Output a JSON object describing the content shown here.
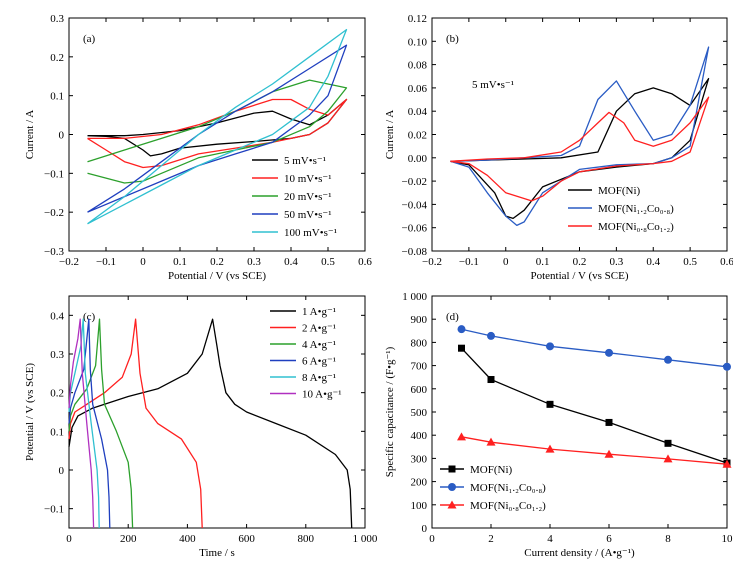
{
  "chart_data": [
    {
      "panel": "(a)",
      "type": "line",
      "xlabel": "Potential / V (vs SCE)",
      "ylabel": "Current / A",
      "xlim": [
        -0.2,
        0.6
      ],
      "ylim": [
        -0.3,
        0.3
      ],
      "xticks": [
        "-0.2",
        "-0.1",
        "0",
        "0.1",
        "0.2",
        "0.3",
        "0.4",
        "0.5",
        "0.6"
      ],
      "yticks": [
        "-0.3",
        "-0.2",
        "-0.1",
        "0",
        "0.1",
        "0.2",
        "0.3"
      ],
      "legend_position": "bottom-right",
      "series": [
        {
          "name": "5 mV•s⁻¹",
          "color": "#000000",
          "x": [
            -0.15,
            -0.05,
            0.0,
            0.1,
            0.2,
            0.3,
            0.35,
            0.4,
            0.45,
            0.5,
            0.55,
            0.5,
            0.45,
            0.4,
            0.3,
            0.2,
            0.1,
            0.05,
            0.02,
            0.0,
            -0.05,
            -0.1,
            -0.15
          ],
          "y": [
            -0.003,
            -0.003,
            0.0,
            0.01,
            0.03,
            0.055,
            0.06,
            0.04,
            0.025,
            0.05,
            0.09,
            0.03,
            0.0,
            -0.01,
            -0.018,
            -0.025,
            -0.035,
            -0.05,
            -0.055,
            -0.04,
            -0.01,
            -0.005,
            -0.003
          ]
        },
        {
          "name": "10 mV•s⁻¹",
          "color": "#ff2020",
          "x": [
            -0.15,
            -0.05,
            0.05,
            0.15,
            0.25,
            0.35,
            0.4,
            0.45,
            0.5,
            0.55,
            0.5,
            0.45,
            0.35,
            0.25,
            0.15,
            0.05,
            0.0,
            -0.05,
            -0.1,
            -0.15
          ],
          "y": [
            -0.01,
            -0.01,
            0.0,
            0.025,
            0.06,
            0.09,
            0.09,
            0.065,
            0.05,
            0.09,
            0.03,
            0.0,
            -0.02,
            -0.035,
            -0.05,
            -0.08,
            -0.085,
            -0.07,
            -0.04,
            -0.01
          ]
        },
        {
          "name": "20 mV•s⁻¹",
          "color": "#2ca02c",
          "x": [
            -0.15,
            -0.05,
            0.05,
            0.15,
            0.25,
            0.35,
            0.45,
            0.5,
            0.55,
            0.5,
            0.45,
            0.35,
            0.25,
            0.15,
            0.05,
            0.0,
            -0.05,
            -0.15
          ],
          "y": [
            -0.07,
            -0.04,
            -0.01,
            0.02,
            0.06,
            0.11,
            0.14,
            0.13,
            0.12,
            0.06,
            0.02,
            -0.02,
            -0.04,
            -0.06,
            -0.1,
            -0.12,
            -0.125,
            -0.1
          ]
        },
        {
          "name": "50 mV•s⁻¹",
          "color": "#1f3fbf",
          "x": [
            -0.15,
            -0.05,
            0.05,
            0.15,
            0.25,
            0.35,
            0.45,
            0.55,
            0.5,
            0.45,
            0.35,
            0.25,
            0.15,
            0.05,
            -0.05,
            -0.15
          ],
          "y": [
            -0.2,
            -0.14,
            -0.07,
            0.0,
            0.06,
            0.11,
            0.17,
            0.23,
            0.1,
            0.05,
            -0.02,
            -0.05,
            -0.08,
            -0.12,
            -0.16,
            -0.2
          ]
        },
        {
          "name": "100 mV•s⁻¹",
          "color": "#30c0d0",
          "x": [
            -0.15,
            -0.05,
            0.05,
            0.15,
            0.25,
            0.35,
            0.45,
            0.55,
            0.5,
            0.45,
            0.35,
            0.25,
            0.15,
            0.05,
            -0.05,
            -0.15
          ],
          "y": [
            -0.23,
            -0.16,
            -0.08,
            0.0,
            0.07,
            0.13,
            0.2,
            0.27,
            0.15,
            0.07,
            0.0,
            -0.04,
            -0.08,
            -0.13,
            -0.18,
            -0.23
          ]
        }
      ]
    },
    {
      "panel": "(b)",
      "type": "line",
      "xlabel": "Potential / V (vs SCE)",
      "ylabel": "Current / A",
      "xlim": [
        -0.2,
        0.6
      ],
      "ylim": [
        -0.08,
        0.12
      ],
      "xticks": [
        "-0.2",
        "-0.1",
        "0",
        "0.1",
        "0.2",
        "0.3",
        "0.4",
        "0.5",
        "0.6"
      ],
      "yticks": [
        "-0.08",
        "-0.06",
        "-0.04",
        "-0.02",
        "0.00",
        "0.02",
        "0.04",
        "0.06",
        "0.08",
        "0.10",
        "0.12"
      ],
      "annotation": "5 mV•s⁻¹",
      "legend_position": "bottom-right",
      "series": [
        {
          "name": "MOF(Ni)",
          "color": "#000000",
          "x": [
            -0.15,
            -0.05,
            0.05,
            0.15,
            0.25,
            0.3,
            0.35,
            0.4,
            0.45,
            0.5,
            0.55,
            0.5,
            0.45,
            0.4,
            0.3,
            0.2,
            0.1,
            0.05,
            0.02,
            0.0,
            -0.03,
            -0.1,
            -0.15
          ],
          "y": [
            -0.003,
            -0.002,
            -0.001,
            0.0,
            0.005,
            0.04,
            0.055,
            0.06,
            0.055,
            0.045,
            0.068,
            0.015,
            0.0,
            -0.005,
            -0.008,
            -0.012,
            -0.025,
            -0.045,
            -0.052,
            -0.05,
            -0.03,
            -0.006,
            -0.003
          ]
        },
        {
          "name": "MOF(Ni₁.₂Co₀.₈)",
          "color": "#2a5cc4",
          "x": [
            -0.15,
            -0.05,
            0.05,
            0.15,
            0.2,
            0.25,
            0.3,
            0.35,
            0.4,
            0.45,
            0.5,
            0.55,
            0.5,
            0.45,
            0.4,
            0.3,
            0.2,
            0.1,
            0.05,
            0.03,
            0.0,
            -0.05,
            -0.1,
            -0.15
          ],
          "y": [
            -0.003,
            -0.002,
            0.0,
            0.002,
            0.01,
            0.05,
            0.066,
            0.04,
            0.015,
            0.02,
            0.045,
            0.095,
            0.01,
            0.0,
            -0.005,
            -0.006,
            -0.01,
            -0.03,
            -0.055,
            -0.058,
            -0.05,
            -0.03,
            -0.008,
            -0.003
          ]
        },
        {
          "name": "MOF(Ni₀.₈Co₁.₂)",
          "color": "#ff2020",
          "x": [
            -0.15,
            -0.05,
            0.05,
            0.15,
            0.2,
            0.25,
            0.28,
            0.32,
            0.35,
            0.4,
            0.45,
            0.5,
            0.55,
            0.5,
            0.45,
            0.4,
            0.3,
            0.2,
            0.15,
            0.1,
            0.07,
            0.0,
            -0.05,
            -0.1,
            -0.15
          ],
          "y": [
            -0.003,
            -0.001,
            0.0,
            0.005,
            0.015,
            0.03,
            0.039,
            0.03,
            0.015,
            0.01,
            0.015,
            0.03,
            0.052,
            0.005,
            -0.003,
            -0.005,
            -0.007,
            -0.012,
            -0.02,
            -0.033,
            -0.037,
            -0.03,
            -0.015,
            -0.005,
            -0.003
          ]
        }
      ]
    },
    {
      "panel": "(c)",
      "type": "line",
      "xlabel": "Time / s",
      "ylabel": "Potential / V (vs SCE)",
      "xlim": [
        0,
        1000
      ],
      "ylim": [
        -0.15,
        0.45
      ],
      "xticks": [
        "0",
        "200",
        "400",
        "600",
        "800",
        "1 000"
      ],
      "yticks": [
        "-0.1",
        "0",
        "0.1",
        "0.2",
        "0.3",
        "0.4"
      ],
      "legend_position": "top-right",
      "series": [
        {
          "name": "1 A•g⁻¹",
          "color": "#000000",
          "x": [
            0,
            10,
            30,
            80,
            200,
            300,
            400,
            450,
            485,
            500,
            510,
            530,
            560,
            600,
            700,
            800,
            900,
            940,
            950,
            955
          ],
          "y": [
            0.06,
            0.11,
            0.14,
            0.16,
            0.19,
            0.21,
            0.25,
            0.3,
            0.39,
            0.32,
            0.27,
            0.2,
            0.17,
            0.15,
            0.12,
            0.09,
            0.04,
            0.0,
            -0.05,
            -0.15
          ]
        },
        {
          "name": "2 A•g⁻¹",
          "color": "#ff2020",
          "x": [
            0,
            5,
            20,
            60,
            120,
            180,
            210,
            225,
            240,
            260,
            300,
            380,
            430,
            445,
            450
          ],
          "y": [
            0.08,
            0.12,
            0.15,
            0.17,
            0.2,
            0.24,
            0.3,
            0.39,
            0.25,
            0.16,
            0.12,
            0.08,
            0.02,
            -0.05,
            -0.15
          ]
        },
        {
          "name": "4 A•g⁻¹",
          "color": "#2ca02c",
          "x": [
            0,
            5,
            20,
            60,
            90,
            103,
            110,
            120,
            160,
            200,
            210,
            215
          ],
          "y": [
            0.1,
            0.14,
            0.17,
            0.21,
            0.27,
            0.39,
            0.26,
            0.17,
            0.1,
            0.02,
            -0.05,
            -0.15
          ]
        },
        {
          "name": "6 A•g⁻¹",
          "color": "#1f3fbf",
          "x": [
            0,
            5,
            20,
            50,
            67,
            72,
            80,
            110,
            130,
            135,
            138
          ],
          "y": [
            0.12,
            0.16,
            0.2,
            0.26,
            0.39,
            0.26,
            0.17,
            0.08,
            0.0,
            -0.07,
            -0.15
          ]
        },
        {
          "name": "8 A•g⁻¹",
          "color": "#30c0d0",
          "x": [
            0,
            5,
            20,
            40,
            48,
            55,
            75,
            95,
            100,
            102
          ],
          "y": [
            0.15,
            0.2,
            0.25,
            0.32,
            0.39,
            0.25,
            0.12,
            0.0,
            -0.07,
            -0.15
          ]
        },
        {
          "name": "10 A•g⁻¹",
          "color": "#b030c0",
          "x": [
            0,
            5,
            15,
            30,
            38,
            45,
            60,
            75,
            80,
            83
          ],
          "y": [
            0.16,
            0.22,
            0.28,
            0.34,
            0.39,
            0.25,
            0.12,
            0.0,
            -0.07,
            -0.15
          ]
        }
      ]
    },
    {
      "panel": "(d)",
      "type": "line",
      "xlabel": "Current density / (A•g⁻¹)",
      "ylabel": "Specific capacitance / (F•g⁻¹)",
      "xlim": [
        0,
        10
      ],
      "ylim": [
        0,
        1000
      ],
      "xticks": [
        "0",
        "2",
        "4",
        "6",
        "8",
        "10"
      ],
      "yticks": [
        "0",
        "100",
        "200",
        "300",
        "400",
        "500",
        "600",
        "700",
        "800",
        "900",
        "1 000"
      ],
      "legend_position": "bottom-left",
      "series": [
        {
          "name": "MOF(Ni)",
          "color": "#000000",
          "marker": "square",
          "x": [
            1,
            2,
            4,
            6,
            8,
            10
          ],
          "y": [
            775,
            640,
            533,
            455,
            365,
            280
          ]
        },
        {
          "name": "MOF(Ni₁.₂Co₀.₈)",
          "color": "#2a5cc4",
          "marker": "circle",
          "x": [
            1,
            2,
            4,
            6,
            8,
            10
          ],
          "y": [
            857,
            828,
            783,
            755,
            725,
            695
          ]
        },
        {
          "name": "MOF(Ni₀.₈Co₁.₂)",
          "color": "#ff2020",
          "marker": "triangle",
          "x": [
            1,
            2,
            4,
            6,
            8,
            10
          ],
          "y": [
            393,
            370,
            340,
            318,
            298,
            275
          ]
        }
      ]
    }
  ]
}
